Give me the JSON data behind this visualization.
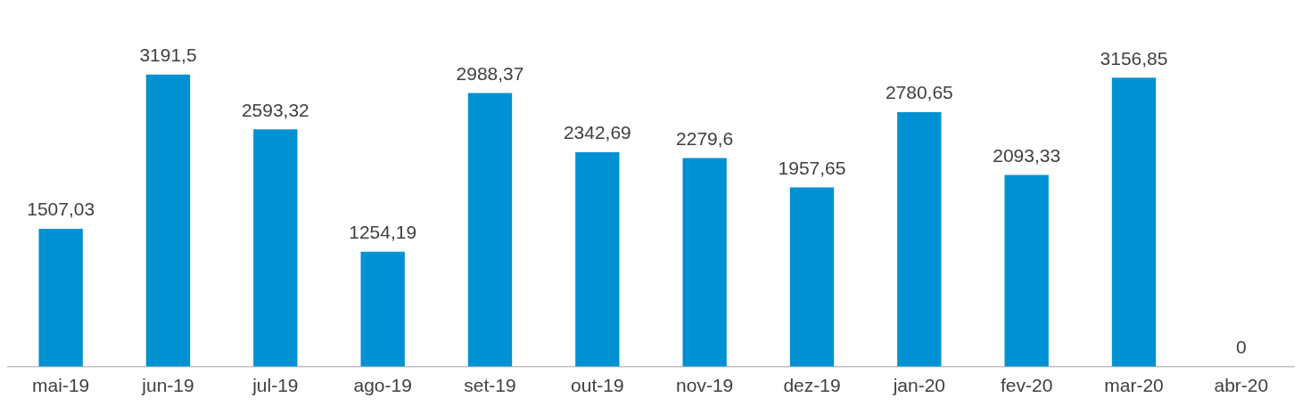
{
  "chart_data": {
    "type": "bar",
    "categories": [
      "mai-19",
      "jun-19",
      "jul-19",
      "ago-19",
      "set-19",
      "out-19",
      "nov-19",
      "dez-19",
      "jan-20",
      "fev-20",
      "mar-20",
      "abr-20"
    ],
    "values": [
      1507.03,
      3191.5,
      2593.32,
      1254.19,
      2988.37,
      2342.69,
      2279.6,
      1957.65,
      2780.65,
      2093.33,
      3156.85,
      0
    ],
    "value_labels": [
      "1507,03",
      "3191,5",
      "2593,32",
      "1254,19",
      "2988,37",
      "2342,69",
      "2279,6",
      "1957,65",
      "2780,65",
      "2093,33",
      "3156,85",
      "0"
    ],
    "color": "#0091d2",
    "grid": false,
    "legend": false
  }
}
